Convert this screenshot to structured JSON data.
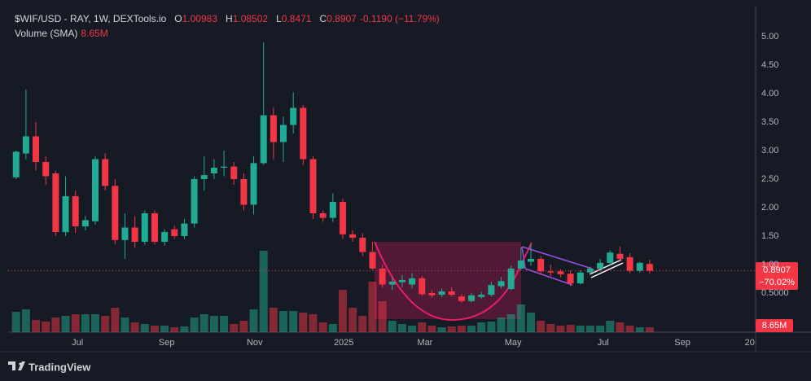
{
  "chart_data": {
    "type": "candlestick",
    "title": "$WIF/USD - RAY, 1W, DEXTools.io",
    "ohlc_labels": [
      "O",
      "H",
      "L",
      "C"
    ],
    "change_label": "-0.1190 (−11.79%)",
    "volume_title": "Volume (SMA)",
    "volume_last_label": "8.65M",
    "change_since_label": "−70.02%",
    "brand": "TradingView",
    "up_color": "#22ab94",
    "down_color": "#f23645",
    "open": [
      2.53,
      2.95,
      3.25,
      2.8,
      2.6,
      1.57,
      2.2,
      1.67,
      1.76,
      2.85,
      2.38,
      1.43,
      1.65,
      1.4,
      1.9,
      1.4,
      1.62,
      1.5,
      1.72,
      2.5,
      2.6,
      2.7,
      2.72,
      2.5,
      2.05,
      2.78,
      3.62,
      3.15,
      3.45,
      3.75,
      2.85,
      1.9,
      1.82,
      2.1,
      1.53,
      1.47,
      1.22,
      0.93,
      0.65,
      0.69,
      0.65,
      0.76,
      0.5,
      0.47,
      0.53,
      0.44,
      0.36,
      0.43,
      0.47,
      0.62,
      0.57,
      0.93,
      1.05,
      1.1,
      0.88,
      0.88,
      0.84,
      0.67,
      0.86,
      0.93,
      1.03,
      1.19,
      1.13,
      0.89,
      1.00983
    ],
    "high": [
      3.0,
      4.07,
      3.5,
      2.9,
      2.65,
      2.55,
      2.3,
      1.85,
      2.9,
      2.95,
      2.5,
      1.9,
      1.85,
      1.95,
      1.95,
      1.62,
      1.68,
      1.8,
      2.55,
      2.9,
      2.85,
      3.0,
      2.8,
      2.6,
      2.9,
      4.9,
      3.75,
      3.6,
      4.02,
      3.8,
      2.9,
      1.95,
      2.25,
      2.15,
      1.6,
      1.55,
      1.4,
      1.0,
      0.78,
      0.82,
      0.85,
      0.8,
      0.55,
      0.58,
      0.6,
      0.48,
      0.5,
      0.52,
      0.7,
      0.78,
      0.98,
      1.3,
      1.35,
      1.15,
      1.0,
      0.92,
      0.9,
      0.9,
      0.96,
      1.1,
      1.25,
      1.32,
      1.2,
      1.05,
      1.08502
    ],
    "low": [
      2.5,
      2.85,
      2.65,
      2.4,
      1.5,
      1.5,
      1.55,
      1.6,
      1.7,
      2.3,
      1.35,
      1.1,
      1.3,
      1.35,
      1.35,
      1.33,
      1.45,
      1.45,
      1.65,
      2.3,
      2.5,
      2.55,
      2.4,
      1.95,
      1.88,
      2.75,
      2.85,
      2.8,
      3.3,
      2.75,
      1.8,
      1.75,
      1.75,
      1.45,
      1.4,
      1.15,
      0.9,
      0.6,
      0.55,
      0.6,
      0.58,
      0.45,
      0.42,
      0.43,
      0.44,
      0.33,
      0.34,
      0.4,
      0.44,
      0.58,
      0.55,
      0.9,
      0.98,
      0.82,
      0.8,
      0.78,
      0.62,
      0.65,
      0.82,
      0.88,
      0.98,
      1.05,
      0.85,
      0.86,
      0.8471
    ],
    "close": [
      2.98,
      3.25,
      2.8,
      2.55,
      1.57,
      2.2,
      1.67,
      1.78,
      2.85,
      2.38,
      1.43,
      1.65,
      1.4,
      1.9,
      1.4,
      1.57,
      1.5,
      1.72,
      2.5,
      2.57,
      2.7,
      2.72,
      2.5,
      2.05,
      2.78,
      3.62,
      3.15,
      3.45,
      3.75,
      2.85,
      1.9,
      1.82,
      2.1,
      1.53,
      1.47,
      1.22,
      0.93,
      0.65,
      0.7,
      0.73,
      0.76,
      0.48,
      0.46,
      0.53,
      0.47,
      0.36,
      0.46,
      0.47,
      0.64,
      0.71,
      0.93,
      1.07,
      1.1,
      0.88,
      0.86,
      0.83,
      0.67,
      0.86,
      0.93,
      1.03,
      1.21,
      1.1,
      0.89,
      1.03,
      0.8907
    ],
    "volume": [
      36,
      40.3,
      21.6,
      18.7,
      25.9,
      28.8,
      31.7,
      31.7,
      31.7,
      28.8,
      43.2,
      25.9,
      17.3,
      14.4,
      11.5,
      11.5,
      8.6,
      10.1,
      25.9,
      31.7,
      28.8,
      28.8,
      14.4,
      20.2,
      40.3,
      144,
      43.2,
      37.4,
      37.4,
      34.6,
      31.7,
      17.3,
      14.4,
      74.9,
      43.2,
      28.8,
      89.3,
      54.7,
      20.2,
      14.4,
      11.5,
      17.3,
      11.5,
      8.6,
      10.1,
      11.5,
      11.5,
      17.3,
      18.7,
      25.9,
      31.7,
      49,
      34.6,
      20.2,
      14.4,
      11.5,
      13,
      11.5,
      11.5,
      11.5,
      20.2,
      17.3,
      11.5,
      8.6,
      8.65
    ],
    "xlim": [
      -0.8,
      74.7
    ],
    "xticks": [
      {
        "value": 6.2,
        "label": "Jul"
      },
      {
        "value": 15.2,
        "label": "Sep"
      },
      {
        "value": 24.1,
        "label": "Nov"
      },
      {
        "value": 33.1,
        "label": "2025"
      },
      {
        "value": 41.3,
        "label": "Mar"
      },
      {
        "value": 50.2,
        "label": "May"
      },
      {
        "value": 59.3,
        "label": "Jul"
      },
      {
        "value": 67.3,
        "label": "Sep"
      },
      {
        "value": 74.1,
        "label": "20"
      }
    ],
    "ylim": [
      -0.186,
      5.5
    ],
    "yticks": [
      {
        "value": 0.5,
        "label": "0.5000"
      },
      {
        "value": 1,
        "label": "1.00"
      },
      {
        "value": 1.5,
        "label": "1.50"
      },
      {
        "value": 2,
        "label": "2.00"
      },
      {
        "value": 2.5,
        "label": "2.50"
      },
      {
        "value": 3,
        "label": "3.00"
      },
      {
        "value": 3.5,
        "label": "3.50"
      },
      {
        "value": 4,
        "label": "4.00"
      },
      {
        "value": 4.5,
        "label": "4.50"
      },
      {
        "value": 5,
        "label": "5.00"
      }
    ],
    "grid": false
  }
}
